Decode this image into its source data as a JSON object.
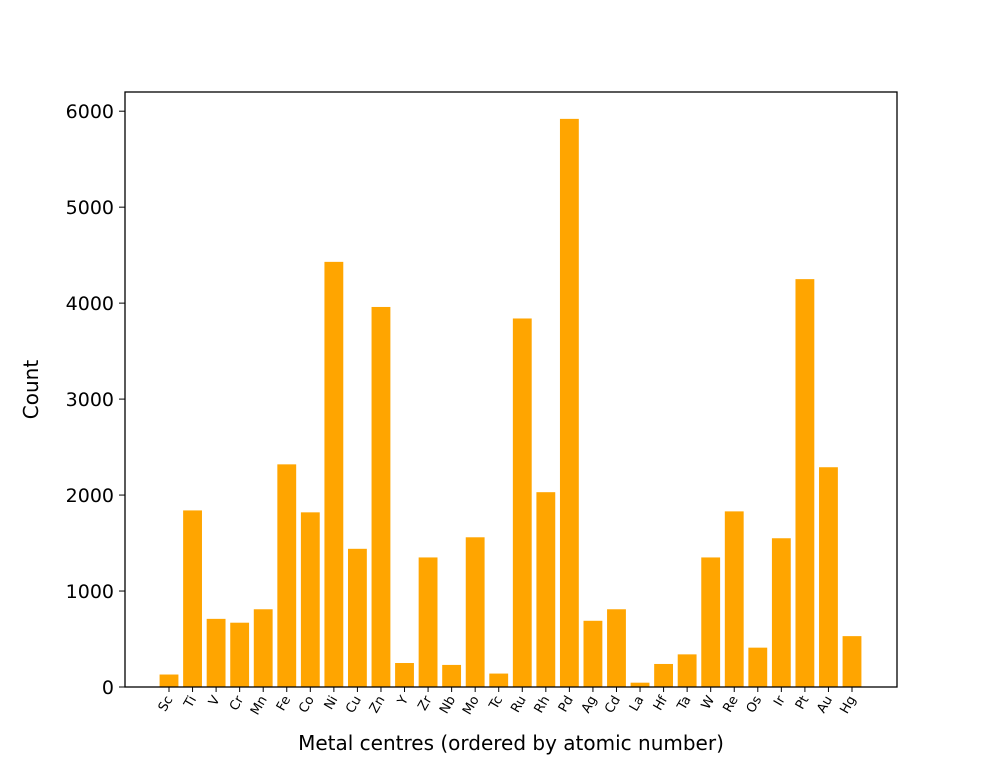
{
  "chart_data": {
    "type": "bar",
    "xlabel": "Metal centres (ordered by atomic number)",
    "ylabel": "Count",
    "ylim": [
      0,
      6200
    ],
    "yticks": [
      0,
      1000,
      2000,
      3000,
      4000,
      5000,
      6000
    ],
    "grid": false,
    "colors": {
      "bar": "#ffa500",
      "axis": "#000000"
    },
    "categories": [
      "Sc",
      "Ti",
      "V",
      "Cr",
      "Mn",
      "Fe",
      "Co",
      "Ni",
      "Cu",
      "Zn",
      "Y",
      "Zr",
      "Nb",
      "Mo",
      "Tc",
      "Ru",
      "Rh",
      "Pd",
      "Ag",
      "Cd",
      "La",
      "Hf",
      "Ta",
      "W",
      "Re",
      "Os",
      "Ir",
      "Pt",
      "Au",
      "Hg"
    ],
    "values": [
      130,
      1840,
      710,
      670,
      810,
      2320,
      1820,
      4430,
      1440,
      3960,
      250,
      1350,
      230,
      1560,
      140,
      3840,
      2030,
      5920,
      690,
      810,
      45,
      240,
      340,
      1350,
      1830,
      410,
      1550,
      4250,
      2290,
      530
    ]
  }
}
